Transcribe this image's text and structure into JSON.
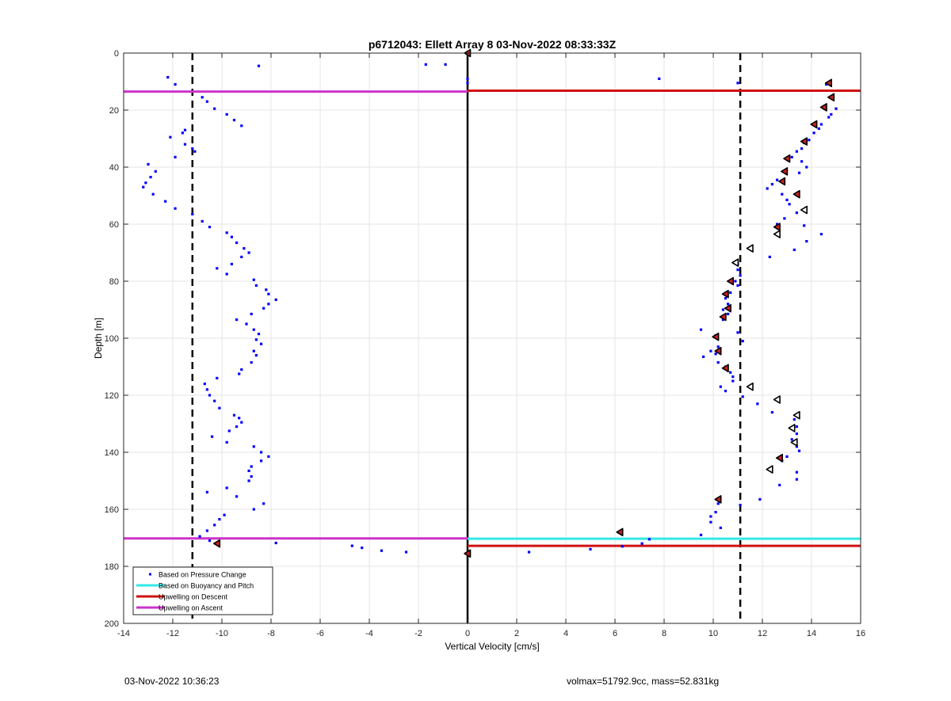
{
  "footer": {
    "timestamp": "03-Nov-2022 10:36:23",
    "info": "volmax=51792.9cc, mass=52.831kg"
  },
  "chart_data": {
    "type": "scatter",
    "title": "p6712043: Ellett Array 8 03-Nov-2022 08:33:33Z",
    "xlabel": "Vertical Velocity [cm/s]",
    "ylabel": "Depth [m]",
    "xlim": [
      -14,
      16
    ],
    "ylim": [
      0,
      200
    ],
    "y_reversed": true,
    "grid": true,
    "xticks": [
      -14,
      -12,
      -10,
      -8,
      -6,
      -4,
      -2,
      0,
      2,
      4,
      6,
      8,
      10,
      12,
      14,
      16
    ],
    "yticks": [
      0,
      20,
      40,
      60,
      80,
      100,
      120,
      140,
      160,
      180,
      200
    ],
    "legend_location": "bottom-left",
    "legend": [
      {
        "label": "Based on Pressure Change",
        "style": "dot",
        "color": "#0000ff"
      },
      {
        "label": "Based on Buoyancy and Pitch",
        "style": "line",
        "color": "#33e8e8"
      },
      {
        "label": "Upwelling on Descent",
        "style": "line",
        "color": "#d01010"
      },
      {
        "label": "Upwelling on Ascent",
        "style": "line",
        "color": "#cc33cc"
      }
    ],
    "dashed_vlines": [
      -11.2,
      11.1
    ],
    "zero_line_x": 0,
    "colors": {
      "pressure": "#0000ff",
      "buoyancy": "#33e8e8",
      "descent": "#d01010",
      "ascent": "#cc33cc",
      "marker_fill": "#cc2020"
    },
    "hlines": [
      {
        "series": "ascent",
        "y": 13.5,
        "x0": -14,
        "x1": 0
      },
      {
        "series": "descent",
        "y": 13.2,
        "x0": 0,
        "x1": 16
      },
      {
        "series": "ascent",
        "y": 170.2,
        "x0": -14,
        "x1": 0
      },
      {
        "series": "buoyancy",
        "y": 170.3,
        "x0": 0,
        "x1": 16
      },
      {
        "series": "descent",
        "y": 172.8,
        "x0": 0,
        "x1": 16
      }
    ],
    "pressure_points": [
      [
        -12.2,
        8.5
      ],
      [
        -11.9,
        11
      ],
      [
        -8.5,
        4.5
      ],
      [
        -1.7,
        4
      ],
      [
        -0.9,
        4
      ],
      [
        0,
        9
      ],
      [
        0,
        10.5
      ],
      [
        7.8,
        9
      ],
      [
        11,
        10.5
      ],
      [
        -10.8,
        15.5
      ],
      [
        -10.6,
        17
      ],
      [
        -10.3,
        19.5
      ],
      [
        -9.8,
        21.5
      ],
      [
        -9.5,
        23.5
      ],
      [
        -9.2,
        25.5
      ],
      [
        -11.5,
        27
      ],
      [
        -11.6,
        28
      ],
      [
        -12.1,
        29.5
      ],
      [
        -11.5,
        32
      ],
      [
        -11.2,
        33.5
      ],
      [
        -11.1,
        34.5
      ],
      [
        -11.9,
        36.5
      ],
      [
        -13,
        39
      ],
      [
        -12.7,
        41.5
      ],
      [
        -12.9,
        43.5
      ],
      [
        -13.1,
        45.5
      ],
      [
        -13.2,
        47
      ],
      [
        -12.8,
        49.5
      ],
      [
        -12.3,
        52
      ],
      [
        -11.9,
        54.5
      ],
      [
        -11.2,
        56.5
      ],
      [
        -10.8,
        59
      ],
      [
        -10.5,
        61
      ],
      [
        -9.8,
        63
      ],
      [
        -9.6,
        64.5
      ],
      [
        -9.4,
        66.5
      ],
      [
        -9.1,
        68.5
      ],
      [
        -8.9,
        70
      ],
      [
        -9.2,
        71.5
      ],
      [
        -9.6,
        74
      ],
      [
        -10.2,
        75.5
      ],
      [
        -9.8,
        77.5
      ],
      [
        -8.7,
        79.5
      ],
      [
        -8.6,
        81.5
      ],
      [
        -8.2,
        83
      ],
      [
        -8.1,
        84.5
      ],
      [
        -7.8,
        86.5
      ],
      [
        -8.1,
        88
      ],
      [
        -8.3,
        89.5
      ],
      [
        -8.8,
        91.5
      ],
      [
        -9.4,
        93.5
      ],
      [
        -9,
        95
      ],
      [
        -8.7,
        97
      ],
      [
        -8.5,
        98.5
      ],
      [
        -8.6,
        100.5
      ],
      [
        -8.4,
        102
      ],
      [
        -8.7,
        104.5
      ],
      [
        -8.6,
        106
      ],
      [
        -8.8,
        108.5
      ],
      [
        -9.2,
        111
      ],
      [
        -9.3,
        112.5
      ],
      [
        -10.2,
        114
      ],
      [
        -10.7,
        116
      ],
      [
        -10.6,
        118
      ],
      [
        -10.5,
        120
      ],
      [
        -10.3,
        122
      ],
      [
        -10.1,
        124.5
      ],
      [
        -9.5,
        127
      ],
      [
        -9.3,
        128
      ],
      [
        -9.2,
        129.5
      ],
      [
        -9.4,
        131
      ],
      [
        -9.7,
        132.5
      ],
      [
        -10.4,
        134.5
      ],
      [
        -9.8,
        136.5
      ],
      [
        -8.7,
        138
      ],
      [
        -8.4,
        140
      ],
      [
        -8.1,
        141.5
      ],
      [
        -8.4,
        143
      ],
      [
        -8.8,
        145
      ],
      [
        -8.9,
        146.5
      ],
      [
        -8.8,
        148.5
      ],
      [
        -8.9,
        150
      ],
      [
        -9.8,
        152.5
      ],
      [
        -10.6,
        154
      ],
      [
        -9.4,
        155.5
      ],
      [
        -8.3,
        158
      ],
      [
        -8.7,
        160
      ],
      [
        -9.9,
        162
      ],
      [
        -10.1,
        163.5
      ],
      [
        -10.3,
        165.5
      ],
      [
        -10.6,
        167.5
      ],
      [
        -10.9,
        169.5
      ],
      [
        -10.5,
        171
      ],
      [
        -7.8,
        171.8
      ],
      [
        -4.7,
        172.8
      ],
      [
        -4.3,
        173.5
      ],
      [
        -3.5,
        174.5
      ],
      [
        -2.5,
        175
      ],
      [
        0,
        175.5
      ],
      [
        2.5,
        175
      ],
      [
        5,
        174
      ],
      [
        6.3,
        173
      ],
      [
        7.1,
        172
      ],
      [
        7.4,
        170.5
      ],
      [
        14.6,
        11
      ],
      [
        15,
        19.5
      ],
      [
        14.8,
        21.5
      ],
      [
        14.7,
        22.5
      ],
      [
        14.4,
        25
      ],
      [
        14.3,
        26.5
      ],
      [
        14.1,
        28
      ],
      [
        13.9,
        30.5
      ],
      [
        13.7,
        31.5
      ],
      [
        13.6,
        33.5
      ],
      [
        13.4,
        34.5
      ],
      [
        13.2,
        36.5
      ],
      [
        13.6,
        38
      ],
      [
        13.8,
        40
      ],
      [
        13.5,
        42
      ],
      [
        12.6,
        44.5
      ],
      [
        12.4,
        46
      ],
      [
        12.2,
        47.5
      ],
      [
        12.8,
        49.5
      ],
      [
        13,
        51.5
      ],
      [
        13.1,
        53
      ],
      [
        13.4,
        56
      ],
      [
        12.9,
        58
      ],
      [
        12.6,
        60
      ],
      [
        13.7,
        60.5
      ],
      [
        14.4,
        63.5
      ],
      [
        13.8,
        66
      ],
      [
        13.3,
        69
      ],
      [
        12.3,
        71.5
      ],
      [
        11,
        74
      ],
      [
        11,
        76
      ],
      [
        11.1,
        78
      ],
      [
        10.9,
        80
      ],
      [
        11,
        81.5
      ],
      [
        10.7,
        84
      ],
      [
        10.5,
        86
      ],
      [
        10.6,
        88
      ],
      [
        10.4,
        90
      ],
      [
        10.6,
        91.5
      ],
      [
        10.4,
        93.5
      ],
      [
        9.5,
        97
      ],
      [
        10.1,
        99
      ],
      [
        11,
        98
      ],
      [
        11.2,
        101
      ],
      [
        10.2,
        103
      ],
      [
        9.9,
        104.5
      ],
      [
        10.1,
        105.5
      ],
      [
        9.6,
        106.5
      ],
      [
        10.2,
        108.5
      ],
      [
        10.5,
        110
      ],
      [
        10.7,
        112
      ],
      [
        10.8,
        113.5
      ],
      [
        10.8,
        115
      ],
      [
        10.3,
        117
      ],
      [
        10.5,
        118.5
      ],
      [
        11.2,
        120.5
      ],
      [
        11.8,
        123
      ],
      [
        12.4,
        126
      ],
      [
        13.3,
        128.5
      ],
      [
        13.4,
        131
      ],
      [
        13.4,
        133.5
      ],
      [
        13.2,
        135.5
      ],
      [
        13.4,
        138
      ],
      [
        13.5,
        139.5
      ],
      [
        13,
        141.5
      ],
      [
        12.8,
        143
      ],
      [
        13.4,
        147
      ],
      [
        13.4,
        149.5
      ],
      [
        12.7,
        151.5
      ],
      [
        11.9,
        156.5
      ],
      [
        10.2,
        158
      ],
      [
        11.1,
        158.5
      ],
      [
        10.1,
        161
      ],
      [
        9.9,
        162.5
      ],
      [
        9.9,
        164.5
      ],
      [
        10.3,
        166.5
      ],
      [
        9.5,
        169
      ]
    ],
    "descent_markers_filled": [
      [
        0,
        0
      ],
      [
        14.7,
        10.5
      ],
      [
        14.8,
        15.5
      ],
      [
        14.5,
        19
      ],
      [
        14.1,
        25
      ],
      [
        13.7,
        31
      ],
      [
        13,
        37
      ],
      [
        12.9,
        41.5
      ],
      [
        12.8,
        45
      ],
      [
        13.4,
        49.5
      ],
      [
        12.6,
        61
      ],
      [
        10.7,
        80
      ],
      [
        10.5,
        84.5
      ],
      [
        10.6,
        89.5
      ],
      [
        10.4,
        92.5
      ],
      [
        10.1,
        99.5
      ],
      [
        10.2,
        104.5
      ],
      [
        10.5,
        110.5
      ],
      [
        12.7,
        142
      ],
      [
        10.2,
        156.5
      ],
      [
        6.2,
        168
      ],
      [
        -10.2,
        172
      ],
      [
        0,
        175.5
      ]
    ],
    "descent_markers_open": [
      [
        13.7,
        55
      ],
      [
        12.6,
        63.5
      ],
      [
        11.5,
        68.5
      ],
      [
        10.9,
        73.5
      ],
      [
        11.5,
        117
      ],
      [
        12.6,
        121.5
      ],
      [
        13.4,
        127
      ],
      [
        13.2,
        131.5
      ],
      [
        13.3,
        136.5
      ],
      [
        12.3,
        146
      ]
    ]
  }
}
